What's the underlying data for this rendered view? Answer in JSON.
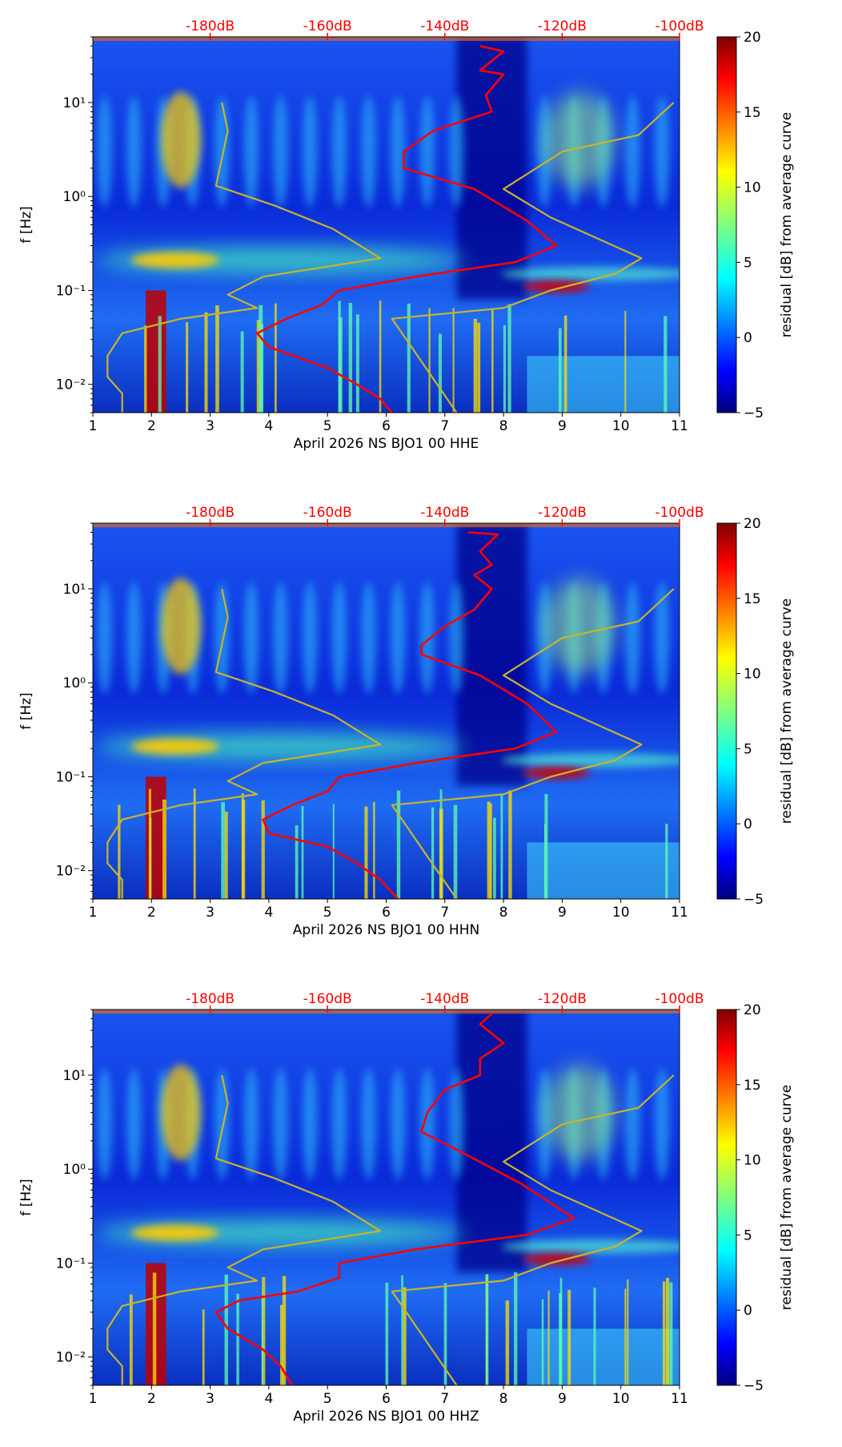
{
  "colors": {
    "red_curve": "#ff0000",
    "model_curve": "#c8b42a",
    "db_label": "#ff0000"
  },
  "chart_data": [
    {
      "type": "heatmap",
      "xlabel": "April 2026 NS BJO1 00 HHE",
      "ylabel": "f [Hz]",
      "x_range": [
        1,
        11
      ],
      "x_ticks": [
        "1",
        "2",
        "3",
        "4",
        "5",
        "6",
        "7",
        "8",
        "9",
        "10",
        "11"
      ],
      "y_range_hz": [
        0.005,
        50
      ],
      "y_scale": "log",
      "y_ticks": [
        {
          "value": 0.01,
          "label": "10⁻²"
        },
        {
          "value": 0.1,
          "label": "10⁻¹"
        },
        {
          "value": 1,
          "label": "10⁰"
        },
        {
          "value": 10,
          "label": "10¹"
        }
      ],
      "top_db_labels": [
        {
          "db": -180,
          "label": "-180dB"
        },
        {
          "db": -160,
          "label": "-160dB"
        },
        {
          "db": -140,
          "label": "-140dB"
        },
        {
          "db": -120,
          "label": "-120dB"
        },
        {
          "db": -100,
          "label": "-100dB"
        }
      ],
      "db_axis_map": {
        "db_at_x1": -200,
        "db_per_x": 10
      },
      "colorbar": {
        "label": "residual [dB] from average curve",
        "min": -5,
        "max": 20,
        "ticks": [
          "−5",
          "0",
          "5",
          "10",
          "15",
          "20"
        ]
      },
      "series": [
        {
          "name": "mean noise curve",
          "color": "red",
          "points": [
            [
              7.6,
              40
            ],
            [
              8.0,
              35
            ],
            [
              7.6,
              22
            ],
            [
              8.0,
              20
            ],
            [
              7.7,
              12
            ],
            [
              7.8,
              8
            ],
            [
              6.8,
              5
            ],
            [
              6.3,
              3
            ],
            [
              6.3,
              2
            ],
            [
              7.5,
              1.2
            ],
            [
              8.4,
              0.55
            ],
            [
              8.9,
              0.3
            ],
            [
              8.2,
              0.2
            ],
            [
              6.5,
              0.14
            ],
            [
              5.2,
              0.1
            ],
            [
              4.9,
              0.07
            ],
            [
              4.3,
              0.05
            ],
            [
              3.8,
              0.035
            ],
            [
              4.0,
              0.025
            ],
            [
              5.0,
              0.015
            ],
            [
              5.5,
              0.01
            ],
            [
              5.9,
              0.007
            ],
            [
              6.1,
              0.005
            ]
          ]
        },
        {
          "name": "high noise model",
          "color": "model",
          "points": [
            [
              10.9,
              10
            ],
            [
              10.3,
              4.5
            ],
            [
              9.0,
              3
            ],
            [
              8.0,
              1.2
            ],
            [
              8.8,
              0.6
            ],
            [
              10.35,
              0.22
            ],
            [
              9.9,
              0.15
            ],
            [
              8.8,
              0.1
            ],
            [
              8.0,
              0.065
            ],
            [
              6.1,
              0.05
            ],
            [
              7.2,
              0.005
            ]
          ]
        },
        {
          "name": "low noise model",
          "color": "model",
          "points": [
            [
              3.2,
              10
            ],
            [
              3.3,
              5
            ],
            [
              3.1,
              1.3
            ],
            [
              4.1,
              0.8
            ],
            [
              5.1,
              0.45
            ],
            [
              5.9,
              0.22
            ],
            [
              3.9,
              0.14
            ],
            [
              3.3,
              0.09
            ],
            [
              3.8,
              0.065
            ],
            [
              2.5,
              0.05
            ],
            [
              1.5,
              0.035
            ],
            [
              1.25,
              0.02
            ],
            [
              1.25,
              0.012
            ],
            [
              1.5,
              0.008
            ],
            [
              1.5,
              0.005
            ]
          ]
        }
      ]
    },
    {
      "type": "heatmap",
      "xlabel": "April 2026 NS BJO1 00 HHN",
      "ylabel": "f [Hz]",
      "x_range": [
        1,
        11
      ],
      "x_ticks": [
        "1",
        "2",
        "3",
        "4",
        "5",
        "6",
        "7",
        "8",
        "9",
        "10",
        "11"
      ],
      "y_range_hz": [
        0.005,
        50
      ],
      "y_scale": "log",
      "y_ticks": [
        {
          "value": 0.01,
          "label": "10⁻²"
        },
        {
          "value": 0.1,
          "label": "10⁻¹"
        },
        {
          "value": 1,
          "label": "10⁰"
        },
        {
          "value": 10,
          "label": "10¹"
        }
      ],
      "top_db_labels": [
        {
          "db": -180,
          "label": "-180dB"
        },
        {
          "db": -160,
          "label": "-160dB"
        },
        {
          "db": -140,
          "label": "-140dB"
        },
        {
          "db": -120,
          "label": "-120dB"
        },
        {
          "db": -100,
          "label": "-100dB"
        }
      ],
      "db_axis_map": {
        "db_at_x1": -200,
        "db_per_x": 10
      },
      "colorbar": {
        "label": "residual [dB] from average curve",
        "min": -5,
        "max": 20,
        "ticks": [
          "−5",
          "0",
          "5",
          "10",
          "15",
          "20"
        ]
      },
      "series": [
        {
          "name": "mean noise curve",
          "color": "red",
          "points": [
            [
              7.4,
              40
            ],
            [
              7.9,
              38
            ],
            [
              7.6,
              25
            ],
            [
              7.8,
              18
            ],
            [
              7.5,
              14
            ],
            [
              7.8,
              10
            ],
            [
              7.5,
              6
            ],
            [
              7.0,
              4
            ],
            [
              6.6,
              2.5
            ],
            [
              6.6,
              2
            ],
            [
              7.6,
              1.2
            ],
            [
              8.4,
              0.6
            ],
            [
              8.9,
              0.3
            ],
            [
              8.2,
              0.2
            ],
            [
              6.5,
              0.14
            ],
            [
              5.2,
              0.1
            ],
            [
              5.0,
              0.07
            ],
            [
              4.4,
              0.05
            ],
            [
              3.9,
              0.035
            ],
            [
              4.0,
              0.025
            ],
            [
              5.0,
              0.018
            ],
            [
              5.5,
              0.012
            ],
            [
              5.9,
              0.008
            ],
            [
              6.2,
              0.005
            ]
          ]
        },
        {
          "name": "high noise model",
          "color": "model",
          "points": [
            [
              10.9,
              10
            ],
            [
              10.3,
              4.5
            ],
            [
              9.0,
              3
            ],
            [
              8.0,
              1.2
            ],
            [
              8.8,
              0.6
            ],
            [
              10.35,
              0.22
            ],
            [
              9.9,
              0.15
            ],
            [
              8.8,
              0.1
            ],
            [
              8.0,
              0.065
            ],
            [
              6.1,
              0.05
            ],
            [
              7.2,
              0.005
            ]
          ]
        },
        {
          "name": "low noise model",
          "color": "model",
          "points": [
            [
              3.2,
              10
            ],
            [
              3.3,
              5
            ],
            [
              3.1,
              1.3
            ],
            [
              4.1,
              0.8
            ],
            [
              5.1,
              0.45
            ],
            [
              5.9,
              0.22
            ],
            [
              3.9,
              0.14
            ],
            [
              3.3,
              0.09
            ],
            [
              3.8,
              0.065
            ],
            [
              2.5,
              0.05
            ],
            [
              1.5,
              0.035
            ],
            [
              1.25,
              0.02
            ],
            [
              1.25,
              0.012
            ],
            [
              1.5,
              0.008
            ],
            [
              1.5,
              0.005
            ]
          ]
        }
      ]
    },
    {
      "type": "heatmap",
      "xlabel": "April 2026 NS BJO1 00 HHZ",
      "ylabel": "f [Hz]",
      "x_range": [
        1,
        11
      ],
      "x_ticks": [
        "1",
        "2",
        "3",
        "4",
        "5",
        "6",
        "7",
        "8",
        "9",
        "10",
        "11"
      ],
      "y_range_hz": [
        0.005,
        50
      ],
      "y_scale": "log",
      "y_ticks": [
        {
          "value": 0.01,
          "label": "10⁻²"
        },
        {
          "value": 0.1,
          "label": "10⁻¹"
        },
        {
          "value": 1,
          "label": "10⁰"
        },
        {
          "value": 10,
          "label": "10¹"
        }
      ],
      "top_db_labels": [
        {
          "db": -180,
          "label": "-180dB"
        },
        {
          "db": -160,
          "label": "-160dB"
        },
        {
          "db": -140,
          "label": "-140dB"
        },
        {
          "db": -120,
          "label": "-120dB"
        },
        {
          "db": -100,
          "label": "-100dB"
        }
      ],
      "db_axis_map": {
        "db_at_x1": -200,
        "db_per_x": 10
      },
      "colorbar": {
        "label": "residual [dB] from average curve",
        "min": -5,
        "max": 20,
        "ticks": [
          "−5",
          "0",
          "5",
          "10",
          "15",
          "20"
        ]
      },
      "series": [
        {
          "name": "mean noise curve",
          "color": "red",
          "points": [
            [
              7.8,
              45
            ],
            [
              7.6,
              35
            ],
            [
              8.0,
              22
            ],
            [
              7.6,
              15
            ],
            [
              7.6,
              10
            ],
            [
              7.0,
              7
            ],
            [
              6.7,
              4
            ],
            [
              6.6,
              2.5
            ],
            [
              7.3,
              1.5
            ],
            [
              8.3,
              0.7
            ],
            [
              8.9,
              0.4
            ],
            [
              9.2,
              0.3
            ],
            [
              8.4,
              0.2
            ],
            [
              6.5,
              0.14
            ],
            [
              5.2,
              0.1
            ],
            [
              5.2,
              0.07
            ],
            [
              4.5,
              0.05
            ],
            [
              3.5,
              0.04
            ],
            [
              3.1,
              0.03
            ],
            [
              3.3,
              0.02
            ],
            [
              3.9,
              0.012
            ],
            [
              4.2,
              0.008
            ],
            [
              4.4,
              0.005
            ]
          ]
        },
        {
          "name": "high noise model",
          "color": "model",
          "points": [
            [
              10.9,
              10
            ],
            [
              10.3,
              4.5
            ],
            [
              9.0,
              3
            ],
            [
              8.0,
              1.2
            ],
            [
              8.8,
              0.6
            ],
            [
              10.35,
              0.22
            ],
            [
              9.9,
              0.15
            ],
            [
              8.8,
              0.1
            ],
            [
              8.0,
              0.065
            ],
            [
              6.1,
              0.05
            ],
            [
              7.2,
              0.005
            ]
          ]
        },
        {
          "name": "low noise model",
          "color": "model",
          "points": [
            [
              3.2,
              10
            ],
            [
              3.3,
              5
            ],
            [
              3.1,
              1.3
            ],
            [
              4.1,
              0.8
            ],
            [
              5.1,
              0.45
            ],
            [
              5.9,
              0.22
            ],
            [
              3.9,
              0.14
            ],
            [
              3.3,
              0.09
            ],
            [
              3.8,
              0.065
            ],
            [
              2.5,
              0.05
            ],
            [
              1.5,
              0.035
            ],
            [
              1.25,
              0.02
            ],
            [
              1.25,
              0.012
            ],
            [
              1.5,
              0.008
            ],
            [
              1.5,
              0.005
            ]
          ]
        }
      ]
    }
  ]
}
